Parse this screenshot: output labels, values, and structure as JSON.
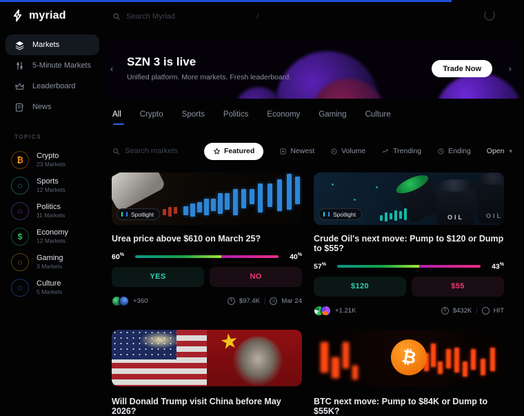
{
  "ui": {
    "percent_sign": "%",
    "stat_separator": "|",
    "accent_blue": "#1d4fd8",
    "yes_color": "#2fd2b2",
    "no_color": "#ef3a77"
  },
  "header": {
    "logo_text": "myriad",
    "search_placeholder": "Search Myriad",
    "search_shortcut": "/"
  },
  "sidebar": {
    "nav": [
      {
        "label": "Markets",
        "active": true
      },
      {
        "label": "5-Minute Markets",
        "active": false
      },
      {
        "label": "Leaderboard",
        "active": false
      },
      {
        "label": "News",
        "active": false
      }
    ],
    "topics_label": "TOPICS",
    "topics": [
      {
        "label": "Crypto",
        "count": "23 Markets",
        "color": "#f7931a",
        "glyph": "₿"
      },
      {
        "label": "Sports",
        "count": "12 Markets",
        "color": "#2dd4bf",
        "glyph": ""
      },
      {
        "label": "Politics",
        "count": "11 Markets",
        "color": "#a855f7",
        "glyph": ""
      },
      {
        "label": "Economy",
        "count": "12 Markets",
        "color": "#22c55e",
        "glyph": "$"
      },
      {
        "label": "Gaming",
        "count": "3 Markets",
        "color": "#d9a514",
        "glyph": ""
      },
      {
        "label": "Culture",
        "count": "5 Markets",
        "color": "#3b82f6",
        "glyph": ""
      }
    ]
  },
  "banner": {
    "title": "SZN 3 is live",
    "subtitle": "Unified platform. More markets. Fresh leaderboard.",
    "cta": "Trade Now"
  },
  "tabs": {
    "items": [
      "All",
      "Crypto",
      "Sports",
      "Politics",
      "Economy",
      "Gaming",
      "Culture"
    ],
    "active": "All"
  },
  "filters": {
    "search_placeholder": "Search markets",
    "featured": "Featured",
    "newest": "Newest",
    "volume": "Volume",
    "trending": "Trending",
    "ending": "Ending",
    "status": "Open"
  },
  "markets": [
    {
      "badge": "Spotlight",
      "title": "Urea price above $610 on March 25?",
      "yes_pct": 60,
      "no_pct": 40,
      "yes_label": "YES",
      "no_label": "NO",
      "traders": "+360",
      "volume": "$97.4K",
      "deadline": "Mar 24"
    },
    {
      "badge": "Spotlight",
      "title": "Crude Oil's next move: Pump to $120 or Dump to $55?",
      "yes_pct": 57,
      "no_pct": 43,
      "yes_label": "$120",
      "no_label": "$55",
      "traders": "+1.21K",
      "volume": "$432K",
      "deadline": "HIT",
      "image_text": "OIL"
    },
    {
      "title": "Will Donald Trump visit China before May 2026?"
    },
    {
      "title": "BTC next move: Pump to $84K or Dump to $55K?"
    }
  ]
}
